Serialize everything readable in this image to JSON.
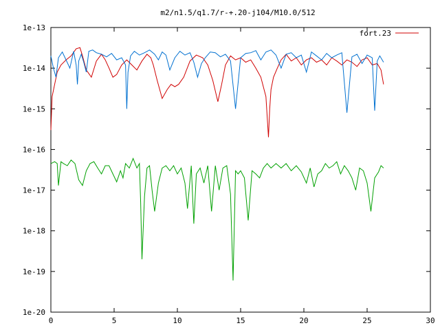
{
  "chart_data": {
    "type": "line",
    "title": "m2/n1.5/q1.7/r-+.20-j104/M10.0/512",
    "xlabel": "",
    "ylabel": "",
    "xlim": [
      0,
      30
    ],
    "ylim_log10": [
      -20,
      -13
    ],
    "y_scale": "log",
    "grid": false,
    "legend_position": "top-right",
    "x_ticks": [
      0,
      5,
      10,
      15,
      20,
      25,
      30
    ],
    "x_tick_labels": [
      "0",
      "5",
      "10",
      "15",
      "20",
      "25",
      "30"
    ],
    "y_ticks_log10": [
      -13,
      -14,
      -15,
      -16,
      -17,
      -18,
      -19,
      -20
    ],
    "y_tick_labels": [
      "1e-13",
      "1e-14",
      "1e-15",
      "1e-16",
      "1e-17",
      "1e-18",
      "1e-19",
      "1e-20"
    ],
    "series": [
      {
        "name": "fort.23",
        "color": "#d00000",
        "show_in_legend": true,
        "x": [
          0,
          0.1,
          0.3,
          0.5,
          0.8,
          1.2,
          1.6,
          2.0,
          2.3,
          2.5,
          2.8,
          3.2,
          3.6,
          4.0,
          4.3,
          4.6,
          4.9,
          5.2,
          5.6,
          6.0,
          6.4,
          6.8,
          7.2,
          7.6,
          7.9,
          8.1,
          8.4,
          8.8,
          9.2,
          9.5,
          9.8,
          10.1,
          10.5,
          11.0,
          11.5,
          12.0,
          12.4,
          12.8,
          13.2,
          13.5,
          13.8,
          14.2,
          14.6,
          15.0,
          15.4,
          15.8,
          16.2,
          16.6,
          17.0,
          17.2,
          17.3,
          17.4,
          17.6,
          17.9,
          18.2,
          18.6,
          19.0,
          19.4,
          19.8,
          20.2,
          20.6,
          21.0,
          21.4,
          21.8,
          22.2,
          22.6,
          23.0,
          23.4,
          23.8,
          24.2,
          24.6,
          25.0,
          25.4,
          25.8,
          26.1,
          26.3
        ],
        "y": [
          3e-16,
          2e-15,
          4e-15,
          8e-15,
          1.2e-14,
          1.6e-14,
          2e-14,
          3e-14,
          3.2e-14,
          2e-14,
          9e-15,
          6e-15,
          1.5e-14,
          2.2e-14,
          1.6e-14,
          1e-14,
          6e-15,
          7e-15,
          1.2e-14,
          1.6e-14,
          1.2e-14,
          9e-15,
          1.5e-14,
          2.2e-14,
          1.8e-14,
          1.2e-14,
          5e-15,
          1.8e-15,
          3e-15,
          4e-15,
          3.5e-15,
          4e-15,
          6e-15,
          1.5e-14,
          2.1e-14,
          1.8e-14,
          1.2e-14,
          5e-15,
          1.5e-15,
          4e-15,
          1.2e-14,
          2e-14,
          1.6e-14,
          1.8e-14,
          1.4e-14,
          1.6e-14,
          1e-14,
          6e-15,
          2e-15,
          2e-16,
          1e-15,
          3e-15,
          6e-15,
          1e-14,
          1.6e-14,
          2.2e-14,
          1.5e-14,
          1.8e-14,
          1.2e-14,
          1.6e-14,
          1.8e-14,
          1.4e-14,
          1.6e-14,
          1.2e-14,
          1.8e-14,
          1.5e-14,
          1.2e-14,
          1.6e-14,
          1.4e-14,
          1.1e-14,
          1.6e-14,
          1.8e-14,
          1.2e-14,
          1.3e-14,
          9e-15,
          4e-15
        ]
      },
      {
        "name": "",
        "color": "#0070d0",
        "show_in_legend": false,
        "x": [
          0,
          0.2,
          0.4,
          0.6,
          0.9,
          1.2,
          1.5,
          1.8,
          2.0,
          2.1,
          2.2,
          2.4,
          2.6,
          2.8,
          3.0,
          3.3,
          3.6,
          4.0,
          4.4,
          4.8,
          5.2,
          5.6,
          5.9,
          6.0,
          6.1,
          6.3,
          6.6,
          7.0,
          7.4,
          7.8,
          8.2,
          8.5,
          8.8,
          9.1,
          9.4,
          9.8,
          10.2,
          10.6,
          11.0,
          11.3,
          11.6,
          11.9,
          12.2,
          12.6,
          13.0,
          13.4,
          13.8,
          14.2,
          14.6,
          15.0,
          15.4,
          15.8,
          16.2,
          16.6,
          17.0,
          17.4,
          17.8,
          18.2,
          18.6,
          19.0,
          19.4,
          19.8,
          20.2,
          20.6,
          21.0,
          21.4,
          21.8,
          22.2,
          22.6,
          23.0,
          23.4,
          23.8,
          24.2,
          24.6,
          25.0,
          25.4,
          25.6,
          25.8,
          26.0,
          26.3
        ],
        "y": [
          2e-14,
          1e-14,
          6e-15,
          1.8e-14,
          2.5e-14,
          1.6e-14,
          1e-14,
          2.6e-14,
          1.2e-14,
          4e-15,
          1.5e-14,
          2.2e-14,
          1.4e-14,
          8e-15,
          2.6e-14,
          2.8e-14,
          2.4e-14,
          2.2e-14,
          1.9e-14,
          2.3e-14,
          1.6e-14,
          1.8e-14,
          1.2e-14,
          1e-15,
          8e-15,
          2e-14,
          2.6e-14,
          2.1e-14,
          2.4e-14,
          2.8e-14,
          2.2e-14,
          1.6e-14,
          2.5e-14,
          2.1e-14,
          9e-15,
          1.8e-14,
          2.6e-14,
          2.1e-14,
          2.4e-14,
          1.4e-14,
          6e-15,
          1.3e-14,
          1.8e-14,
          2.5e-14,
          2.4e-14,
          1.9e-14,
          2.2e-14,
          1.5e-14,
          1e-15,
          1.8e-14,
          2.3e-14,
          2.4e-14,
          2.7e-14,
          1.6e-14,
          2.5e-14,
          2.8e-14,
          2.1e-14,
          1e-14,
          2.2e-14,
          2.4e-14,
          1.8e-14,
          2.1e-14,
          8e-15,
          2.5e-14,
          2e-14,
          1.6e-14,
          2.3e-14,
          1.8e-14,
          2.1e-14,
          2.4e-14,
          8e-16,
          1.9e-14,
          2.2e-14,
          1.3e-14,
          2.1e-14,
          1.8e-14,
          9e-16,
          1.5e-14,
          2e-14,
          1.4e-14
        ]
      },
      {
        "name": "",
        "color": "#00a000",
        "show_in_legend": false,
        "x": [
          0,
          0.3,
          0.5,
          0.6,
          0.8,
          1.0,
          1.3,
          1.6,
          1.9,
          2.2,
          2.5,
          2.8,
          3.1,
          3.4,
          3.7,
          4.0,
          4.3,
          4.6,
          4.9,
          5.2,
          5.5,
          5.7,
          5.9,
          6.2,
          6.5,
          6.8,
          7.0,
          7.1,
          7.2,
          7.4,
          7.6,
          7.8,
          8.0,
          8.2,
          8.5,
          8.8,
          9.1,
          9.4,
          9.7,
          10.0,
          10.3,
          10.6,
          10.8,
          11.1,
          11.3,
          11.5,
          11.8,
          12.1,
          12.4,
          12.7,
          13.0,
          13.3,
          13.6,
          13.9,
          14.2,
          14.4,
          14.6,
          14.8,
          15.0,
          15.3,
          15.6,
          15.9,
          16.2,
          16.5,
          16.8,
          17.1,
          17.4,
          17.8,
          18.2,
          18.6,
          19.0,
          19.4,
          19.8,
          20.2,
          20.5,
          20.8,
          21.1,
          21.4,
          21.7,
          22.0,
          22.3,
          22.6,
          22.9,
          23.2,
          23.5,
          23.8,
          24.1,
          24.4,
          24.7,
          25.0,
          25.3,
          25.6,
          25.9,
          26.1,
          26.3
        ],
        "y": [
          4.5e-17,
          5e-17,
          4.5e-17,
          1.3e-17,
          5e-17,
          4.5e-17,
          4e-17,
          5.5e-17,
          4.5e-17,
          1.8e-17,
          1.3e-17,
          3e-17,
          4.5e-17,
          5e-17,
          3.5e-17,
          2.5e-17,
          4e-17,
          4e-17,
          2.5e-17,
          1.6e-17,
          3e-17,
          2e-17,
          4.5e-17,
          3.5e-17,
          6e-17,
          3.5e-17,
          4.5e-17,
          5e-18,
          2e-19,
          7e-18,
          3.5e-17,
          4e-17,
          1e-17,
          3e-18,
          1.5e-17,
          3.5e-17,
          4e-17,
          3e-17,
          4e-17,
          2.5e-17,
          3.5e-17,
          1.5e-17,
          3.5e-18,
          4e-17,
          1.5e-18,
          2.5e-17,
          3.5e-17,
          1.5e-17,
          4e-17,
          3e-18,
          4e-17,
          1e-17,
          3.5e-17,
          4e-17,
          8e-18,
          6e-20,
          3e-17,
          2.5e-17,
          3e-17,
          2e-17,
          1.8e-18,
          3e-17,
          2.5e-17,
          2e-17,
          3.5e-17,
          4.5e-17,
          3.5e-17,
          4.5e-17,
          3.5e-17,
          4.5e-17,
          3e-17,
          4e-17,
          2.8e-17,
          1.5e-17,
          3.5e-17,
          1.2e-17,
          2.5e-17,
          3e-17,
          4.5e-17,
          3.5e-17,
          4e-17,
          5e-17,
          2.5e-17,
          4e-17,
          3e-17,
          2e-17,
          1e-17,
          3.5e-17,
          3e-17,
          1.5e-17,
          3e-18,
          2e-17,
          2.8e-17,
          4e-17,
          3.5e-17
        ]
      }
    ]
  }
}
